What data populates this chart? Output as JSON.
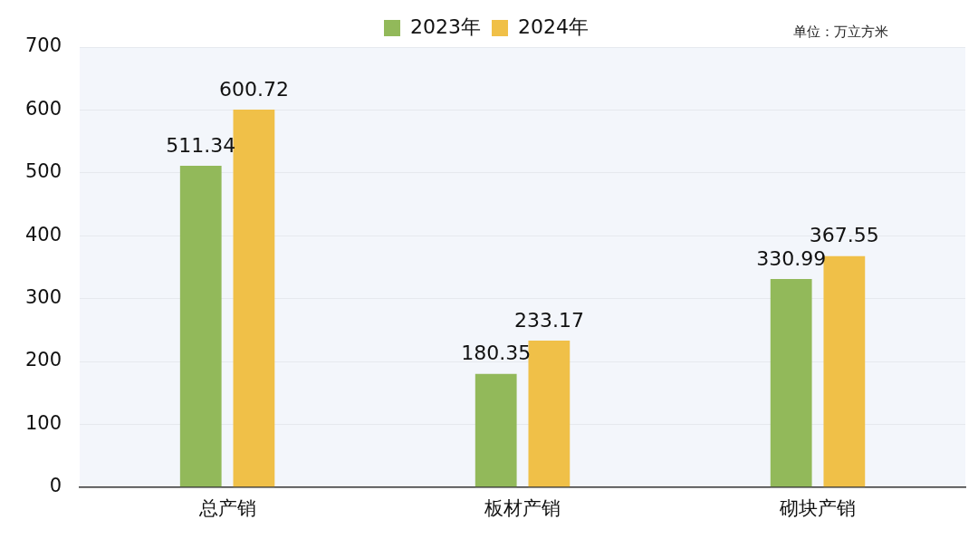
{
  "chart_data": {
    "type": "bar",
    "categories": [
      "总产销",
      "板材产销",
      "砌块产销"
    ],
    "series": [
      {
        "name": "2023年",
        "color": "#92b95a",
        "values": [
          511.34,
          180.35,
          330.99
        ]
      },
      {
        "name": "2024年",
        "color": "#f0c048",
        "values": [
          600.72,
          233.17,
          367.55
        ]
      }
    ],
    "ylim": [
      0,
      700
    ],
    "yticks": [
      0,
      100,
      200,
      300,
      400,
      500,
      600,
      700
    ],
    "grid": "y",
    "legend": "top",
    "data_labels": true,
    "annotations": [
      "单位：万立方米"
    ]
  }
}
